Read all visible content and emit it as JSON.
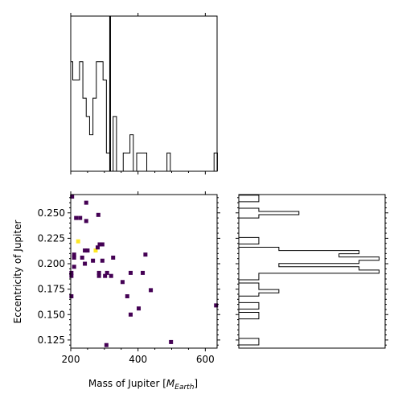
{
  "chart_data": [
    {
      "type": "histogram",
      "panel": "top-marginal",
      "variable": "mass",
      "xlim": [
        200,
        635
      ],
      "ylim": [
        0,
        8.5
      ],
      "edges": [
        198,
        206,
        216,
        226,
        236,
        246,
        256,
        266,
        276,
        286,
        296,
        306,
        316,
        326,
        336,
        346,
        356,
        366,
        376,
        386,
        396,
        406,
        416,
        426,
        436,
        446,
        456,
        466,
        476,
        486,
        496,
        506,
        516,
        526,
        536,
        546,
        556,
        566,
        576,
        586,
        596,
        606,
        616,
        626,
        636
      ],
      "counts": [
        6,
        5,
        5,
        6,
        4,
        3,
        2,
        4,
        6,
        6,
        5,
        1,
        0,
        3,
        0,
        0,
        1,
        1,
        2,
        0,
        1,
        1,
        1,
        0,
        0,
        0,
        0,
        0,
        0,
        1,
        0,
        0,
        0,
        0,
        0,
        0,
        0,
        0,
        0,
        0,
        0,
        0,
        0,
        1
      ],
      "vline": 317,
      "xticks": [
        200,
        400,
        600
      ],
      "show_tick_labels": false
    },
    {
      "type": "heatmap",
      "panel": "joint",
      "xlabel": "Mass of Jupiter [$M_{Earth}$]",
      "xlabel_main": "Mass of Jupiter [",
      "xlabel_sym": "M",
      "xlabel_sub": "Earth",
      "xlabel_end": "]",
      "ylabel": "Eccentricity of Jupiter",
      "xlim": [
        200,
        635
      ],
      "ylim": [
        0.117,
        0.268
      ],
      "xticks": [
        200,
        400,
        600
      ],
      "yticks": [
        0.125,
        0.15,
        0.175,
        0.2,
        0.225,
        0.25
      ],
      "xtick_labels": [
        "200",
        "400",
        "600"
      ],
      "ytick_labels": [
        "0.125",
        "0.150",
        "0.175",
        "0.200",
        "0.225",
        "0.250"
      ],
      "colormap": "viridis",
      "low_color": "#440154",
      "high_color": "#fde725",
      "points": [
        {
          "x": 204,
          "y": 0.266,
          "level": 0
        },
        {
          "x": 246,
          "y": 0.26,
          "level": 0
        },
        {
          "x": 216,
          "y": 0.245,
          "level": 0
        },
        {
          "x": 228,
          "y": 0.245,
          "level": 0
        },
        {
          "x": 246,
          "y": 0.242,
          "level": 0
        },
        {
          "x": 282,
          "y": 0.248,
          "level": 0
        },
        {
          "x": 222,
          "y": 0.222,
          "level": 1
        },
        {
          "x": 242,
          "y": 0.213,
          "level": 0
        },
        {
          "x": 250,
          "y": 0.213,
          "level": 0
        },
        {
          "x": 274,
          "y": 0.213,
          "level": 1
        },
        {
          "x": 280,
          "y": 0.216,
          "level": 0
        },
        {
          "x": 286,
          "y": 0.219,
          "level": 0
        },
        {
          "x": 294,
          "y": 0.219,
          "level": 0
        },
        {
          "x": 210,
          "y": 0.209,
          "level": 0
        },
        {
          "x": 210,
          "y": 0.206,
          "level": 0
        },
        {
          "x": 234,
          "y": 0.206,
          "level": 0
        },
        {
          "x": 266,
          "y": 0.203,
          "level": 0
        },
        {
          "x": 294,
          "y": 0.203,
          "level": 0
        },
        {
          "x": 326,
          "y": 0.206,
          "level": 0
        },
        {
          "x": 422,
          "y": 0.209,
          "level": 0
        },
        {
          "x": 242,
          "y": 0.2,
          "level": 0
        },
        {
          "x": 210,
          "y": 0.197,
          "level": 0
        },
        {
          "x": 202,
          "y": 0.191,
          "level": 0
        },
        {
          "x": 202,
          "y": 0.188,
          "level": 0
        },
        {
          "x": 284,
          "y": 0.191,
          "level": 0
        },
        {
          "x": 284,
          "y": 0.188,
          "level": 0
        },
        {
          "x": 302,
          "y": 0.188,
          "level": 0
        },
        {
          "x": 308,
          "y": 0.191,
          "level": 0
        },
        {
          "x": 320,
          "y": 0.188,
          "level": 0
        },
        {
          "x": 378,
          "y": 0.191,
          "level": 0
        },
        {
          "x": 414,
          "y": 0.191,
          "level": 0
        },
        {
          "x": 354,
          "y": 0.182,
          "level": 0
        },
        {
          "x": 438,
          "y": 0.174,
          "level": 0
        },
        {
          "x": 202,
          "y": 0.168,
          "level": 0
        },
        {
          "x": 368,
          "y": 0.168,
          "level": 0
        },
        {
          "x": 402,
          "y": 0.156,
          "level": 0
        },
        {
          "x": 632,
          "y": 0.159,
          "level": 0
        },
        {
          "x": 378,
          "y": 0.15,
          "level": 0
        },
        {
          "x": 498,
          "y": 0.123,
          "level": 0
        },
        {
          "x": 306,
          "y": 0.12,
          "level": 0
        }
      ]
    },
    {
      "type": "histogram",
      "panel": "right-marginal",
      "orientation": "horizontal",
      "variable": "eccentricity",
      "ylim": [
        0.117,
        0.268
      ],
      "xlim": [
        0,
        7.3
      ],
      "edges": [
        0.117,
        0.1202,
        0.1234,
        0.1266,
        0.1298,
        0.133,
        0.1362,
        0.1394,
        0.1426,
        0.1458,
        0.149,
        0.1522,
        0.1554,
        0.1586,
        0.1618,
        0.165,
        0.1682,
        0.1714,
        0.1746,
        0.1778,
        0.181,
        0.1842,
        0.1874,
        0.1906,
        0.1938,
        0.197,
        0.2002,
        0.2034,
        0.2066,
        0.2098,
        0.213,
        0.2162,
        0.2194,
        0.2226,
        0.2258,
        0.229,
        0.2322,
        0.2354,
        0.2386,
        0.2418,
        0.245,
        0.2482,
        0.2514,
        0.2546,
        0.2578,
        0.261,
        0.2642,
        0.2674
      ],
      "counts": [
        0,
        1,
        1,
        0,
        0,
        0,
        0,
        0,
        0,
        1,
        1,
        0,
        1,
        1,
        0,
        0,
        1,
        2,
        1,
        1,
        0,
        1,
        1,
        7,
        6,
        2,
        6,
        7,
        5,
        6,
        2,
        0,
        1,
        1,
        0,
        0,
        0,
        0,
        0,
        0,
        1,
        3,
        1,
        0,
        0,
        1,
        1
      ],
      "yticks": [
        0.125,
        0.15,
        0.175,
        0.2,
        0.225,
        0.25
      ],
      "show_tick_labels": false
    }
  ]
}
